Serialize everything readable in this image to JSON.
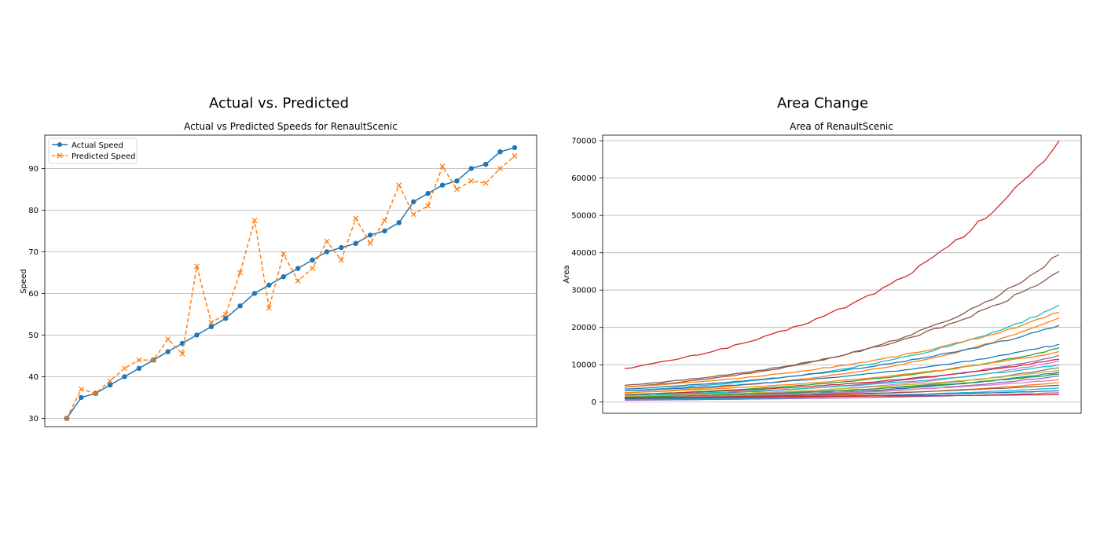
{
  "figure": {
    "left_panel_title": "Actual vs. Predicted",
    "right_panel_title": "Area Change"
  },
  "chart_data": [
    {
      "type": "line",
      "title": "Actual vs Predicted Speeds for RenaultScenic",
      "xlabel": "",
      "ylabel": "Speed",
      "ylim": [
        28,
        98
      ],
      "yticks": [
        30,
        40,
        50,
        60,
        70,
        80,
        90
      ],
      "grid": "horizontal",
      "legend_position": "upper-left",
      "x": [
        0,
        1,
        2,
        3,
        4,
        5,
        6,
        7,
        8,
        9,
        10,
        11,
        12,
        13,
        14,
        15,
        16,
        17,
        18,
        19,
        20,
        21,
        22,
        23,
        24,
        25,
        26,
        27,
        28,
        29,
        30,
        31
      ],
      "series": [
        {
          "name": "Actual Speed",
          "color": "#1f77b4",
          "style": "solid",
          "marker": "circle",
          "values": [
            30,
            35,
            36,
            38,
            40,
            42,
            44,
            46,
            48,
            50,
            52,
            54,
            57,
            60,
            62,
            64,
            66,
            68,
            70,
            71,
            72,
            74,
            75,
            77,
            82,
            84,
            86,
            87,
            90,
            91,
            94,
            95
          ]
        },
        {
          "name": "Predicted Speed",
          "color": "#ff7f0e",
          "style": "dashed",
          "marker": "x",
          "values": [
            30,
            37,
            36,
            39,
            42,
            44,
            44,
            49,
            45.5,
            66.5,
            53,
            55,
            65,
            77.5,
            56.5,
            69.5,
            63,
            66,
            72.5,
            68,
            78,
            72,
            77.5,
            86,
            79,
            81,
            90.5,
            85,
            87,
            86.5,
            90,
            93
          ]
        }
      ]
    },
    {
      "type": "line",
      "title": "Area of RenaultScenic",
      "xlabel": "",
      "ylabel": "Area",
      "ylim": [
        -3000,
        71500
      ],
      "yticks": [
        0,
        10000,
        20000,
        30000,
        40000,
        50000,
        60000,
        70000
      ],
      "grid": "horizontal",
      "legend_position": "none",
      "points_per_series": 60,
      "series": [
        {
          "start": 9000,
          "end": 70000,
          "color": "#d62728"
        },
        {
          "start": 4000,
          "end": 39500,
          "color": "#8c564b"
        },
        {
          "start": 4500,
          "end": 35000,
          "color": "#8c564b"
        },
        {
          "start": 3000,
          "end": 26000,
          "color": "#17becf"
        },
        {
          "start": 4000,
          "end": 24000,
          "color": "#ff7f0e"
        },
        {
          "start": 2500,
          "end": 22500,
          "color": "#ff7f0e"
        },
        {
          "start": 3500,
          "end": 20500,
          "color": "#1f77b4"
        },
        {
          "start": 3000,
          "end": 15500,
          "color": "#1f77b4"
        },
        {
          "start": 2000,
          "end": 14500,
          "color": "#2ca02c"
        },
        {
          "start": 2500,
          "end": 13500,
          "color": "#ff7f0e"
        },
        {
          "start": 1500,
          "end": 12500,
          "color": "#9467bd"
        },
        {
          "start": 2000,
          "end": 11500,
          "color": "#d62728"
        },
        {
          "start": 1200,
          "end": 11000,
          "color": "#e377c2"
        },
        {
          "start": 1800,
          "end": 10000,
          "color": "#17becf"
        },
        {
          "start": 1000,
          "end": 9200,
          "color": "#7f7f7f"
        },
        {
          "start": 1500,
          "end": 8500,
          "color": "#bcbd22"
        },
        {
          "start": 900,
          "end": 8000,
          "color": "#1f77b4"
        },
        {
          "start": 1300,
          "end": 7500,
          "color": "#2ca02c"
        },
        {
          "start": 800,
          "end": 7000,
          "color": "#9467bd"
        },
        {
          "start": 1100,
          "end": 6000,
          "color": "#e377c2"
        },
        {
          "start": 700,
          "end": 5200,
          "color": "#ff7f0e"
        },
        {
          "start": 1000,
          "end": 4500,
          "color": "#8c564b"
        },
        {
          "start": 600,
          "end": 3800,
          "color": "#17becf"
        },
        {
          "start": 900,
          "end": 3000,
          "color": "#1f77b4"
        },
        {
          "start": 500,
          "end": 2500,
          "color": "#9467bd"
        },
        {
          "start": 1200,
          "end": 2000,
          "color": "#d62728"
        }
      ]
    }
  ]
}
